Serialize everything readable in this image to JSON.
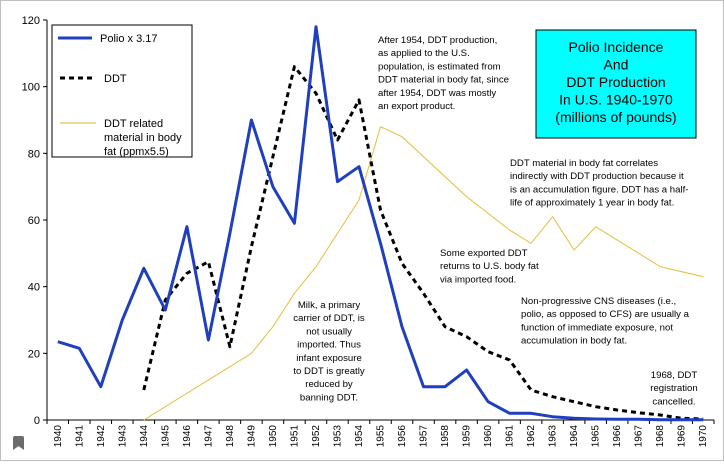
{
  "chart_data": {
    "type": "line",
    "title": "Polio Incidence\nAnd\nDDT Production\nIn U.S. 1940-1970\n(millions of pounds)",
    "xlabel": "",
    "ylabel": "",
    "ylim": [
      0,
      120
    ],
    "yticks": [
      0,
      20,
      40,
      60,
      80,
      100,
      120
    ],
    "grid": false,
    "legend_position": "top-left",
    "categories": [
      "1940",
      "1941",
      "1942",
      "1943",
      "1944",
      "1945",
      "1946",
      "1947",
      "1948",
      "1949",
      "1950",
      "1951",
      "1952",
      "1953",
      "1954",
      "1955",
      "1956",
      "1957",
      "1958",
      "1959",
      "1960",
      "1961",
      "1962",
      "1963",
      "1964",
      "1965",
      "1966",
      "1967",
      "1968",
      "1969",
      "1970"
    ],
    "series": [
      {
        "name": "Polio x 3.17",
        "color": "#1f3fbf",
        "style": "solid-thick",
        "values": [
          23.5,
          21.5,
          10,
          30,
          45.5,
          33,
          58,
          24,
          56,
          90,
          70,
          59,
          118,
          71.5,
          76,
          53,
          28,
          10,
          10,
          15,
          5.5,
          2,
          2,
          1,
          0.5,
          0.3,
          0.2,
          0.2,
          0.1,
          0.1,
          0.1
        ]
      },
      {
        "name": "DDT",
        "color": "#000000",
        "style": "dashed",
        "values": [
          null,
          null,
          null,
          null,
          9,
          36,
          44,
          47.5,
          22,
          52,
          79,
          106,
          98,
          84,
          96,
          63,
          47,
          38,
          28,
          25,
          20.5,
          18,
          9,
          7,
          5.5,
          4,
          3,
          2.2,
          1.5,
          0.5,
          0.3
        ]
      },
      {
        "name": "DDT related material in body fat (ppmx5.5)",
        "color": "#e8c24a",
        "style": "solid-thin",
        "values": [
          null,
          null,
          null,
          null,
          0,
          4,
          8,
          12,
          16,
          20,
          28,
          38,
          46,
          56,
          66,
          88,
          85,
          79,
          73,
          67,
          62,
          57,
          53,
          61,
          51,
          58,
          54,
          50,
          46,
          44.5,
          43
        ]
      }
    ],
    "annotations": [
      "After 1954, DDT production,\nas applied to the U.S.\npopulation, is estimated from\nDDT material in body fat, since\nafter 1954, DDT was mostly\nan export product.",
      "DDT material in body fat correlates\nindirectly with DDT production because it\nis an accumulation figure. DDT has a half-\nlife of approximately 1 year in body fat.",
      "Some exported DDT\nreturns to U.S. body fat\nvia imported food.",
      "Non-progressive CNS diseases (i.e.,\npolio, as opposed to CFS) are usually a\nfunction of immediate exposure, not\naccumulation in body fat.",
      "Milk, a primary\ncarrier of DDT, is\nnot usually\nimported. Thus\ninfant exposure\nto DDT is greatly\nreduced by\nbanning DDT.",
      "1968, DDT\nregistration\ncancelled."
    ],
    "title_box_color": "#00ffff"
  }
}
